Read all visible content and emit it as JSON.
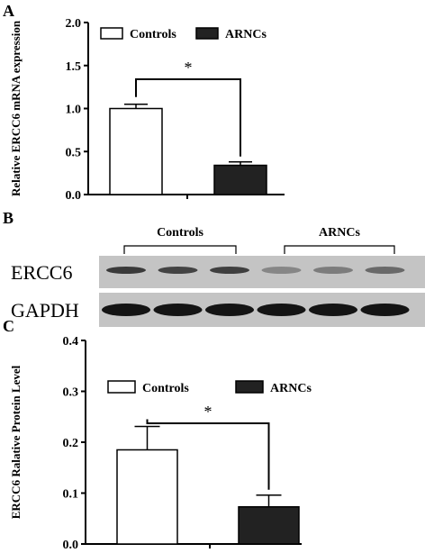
{
  "panels": {
    "a": "A",
    "b": "B",
    "c": "C"
  },
  "legend_color": {
    "controls": "#ffffff",
    "arncs": "#222222"
  },
  "chart_data": [
    {
      "type": "bar",
      "categories": [
        "Controls",
        "ARNCs"
      ],
      "values": [
        1.0,
        0.34
      ],
      "errors": [
        0.05,
        0.04
      ],
      "ylabel": "Relative ERCC6 mRNA expression",
      "ylim": [
        0,
        2.0
      ],
      "yticks": [
        "0.0",
        "0.5",
        "1.0",
        "1.5",
        "2.0"
      ],
      "yticks_values": [
        0,
        0.5,
        1.0,
        1.5,
        2.0
      ],
      "legend": [
        "Controls",
        "ARNCs"
      ],
      "legend_position": "top",
      "significance": "*"
    },
    {
      "type": "bar",
      "categories": [
        "Controls",
        "ARNCs"
      ],
      "values": [
        0.185,
        0.073
      ],
      "errors": [
        0.046,
        0.023
      ],
      "ylabel": "ERCC6 Ralative Protein Level",
      "ylim": [
        0,
        0.4
      ],
      "yticks": [
        "0.0",
        "0.1",
        "0.2",
        "0.3",
        "0.4"
      ],
      "yticks_values": [
        0,
        0.1,
        0.2,
        0.3,
        0.4
      ],
      "legend": [
        "Controls",
        "ARNCs"
      ],
      "legend_position": "top",
      "significance": "*"
    }
  ],
  "blot": {
    "group_labels": [
      "Controls",
      "ARNCs"
    ],
    "rows": [
      {
        "label": "ERCC6",
        "band_intensity": [
          0.75,
          0.7,
          0.72,
          0.35,
          0.4,
          0.5
        ]
      },
      {
        "label": "GAPDH",
        "band_intensity": [
          0.95,
          0.95,
          0.95,
          0.95,
          0.95,
          0.95
        ]
      }
    ]
  }
}
